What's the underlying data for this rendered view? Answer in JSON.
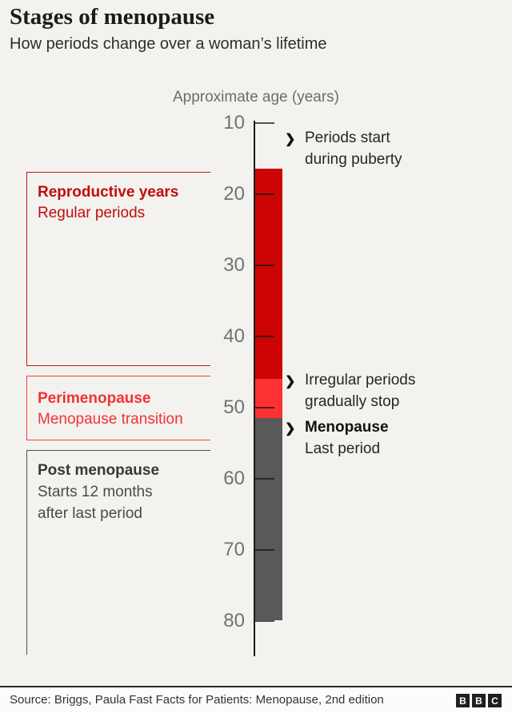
{
  "header": {
    "title": "Stages of menopause",
    "subtitle": "How periods change over a woman’s lifetime"
  },
  "chart_data": {
    "type": "bar",
    "orientation": "vertical-timeline",
    "axis_title": "Approximate age (years)",
    "axis_min": 10,
    "axis_max": 80,
    "ticks": [
      10,
      20,
      30,
      40,
      50,
      60,
      70,
      80
    ],
    "segments": [
      {
        "label": "Reproductive years",
        "sublabel": "Regular periods",
        "age_start": 16.5,
        "age_end": 46,
        "color": "#cc0404"
      },
      {
        "label": "Perimenopause",
        "sublabel": "Menopause transition",
        "age_start": 46,
        "age_end": 51.5,
        "color": "#fd3133"
      },
      {
        "label": "Post menopause",
        "sublabel": "Starts 12 months after last period",
        "age_start": 51.5,
        "age_end": 80,
        "color": "#595959"
      }
    ],
    "annotations": [
      {
        "age": 12,
        "lines": [
          "Periods start",
          "during puberty"
        ],
        "bold": [
          false,
          false
        ]
      },
      {
        "age": 46,
        "lines": [
          "Irregular periods",
          "gradually stop"
        ],
        "bold": [
          false,
          false
        ]
      },
      {
        "age": 52.6,
        "lines": [
          "Menopause",
          "Last period"
        ],
        "bold": [
          true,
          false
        ]
      }
    ],
    "arrow_glyph": "❯"
  },
  "footer": {
    "source": "Source: Briggs, Paula Fast Facts for Patients: Menopause, 2nd edition",
    "logo": [
      "B",
      "B",
      "C"
    ]
  }
}
